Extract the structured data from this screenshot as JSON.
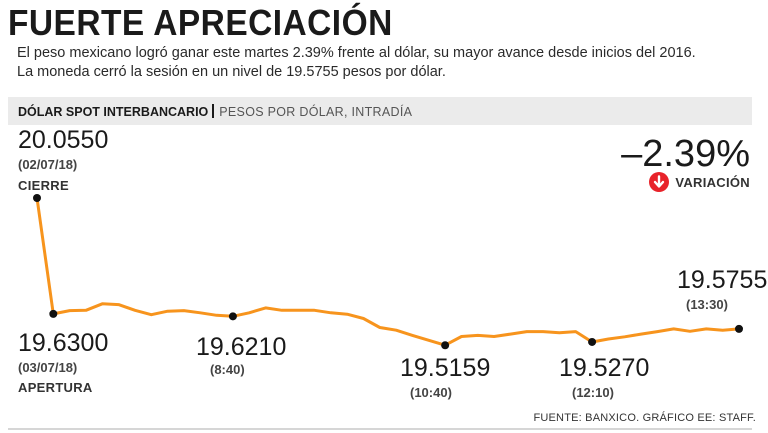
{
  "header": {
    "title": "FUERTE APRECIACIÓN",
    "subtitle_line1": "El peso mexicano logró ganar este martes 2.39% frente al dólar, su mayor avance desde inicios del 2016.",
    "subtitle_line2": "La moneda cerró la sesión en un nivel de 19.5755 pesos por dólar."
  },
  "band": {
    "bold": "DÓLAR SPOT INTERBANCARIO",
    "light": "PESOS POR DÓLAR, INTRADÍA"
  },
  "change": {
    "value": "–2.39%",
    "label": "VARIACIÓN",
    "color": "#e8232a"
  },
  "annotations": {
    "close": {
      "value": "20.0550",
      "date": "(02/07/18)",
      "tag": "CIERRE"
    },
    "open": {
      "value": "19.6300",
      "date": "(03/07/18)",
      "tag": "APERTURA"
    },
    "p840": {
      "value": "19.6210",
      "date": "(8:40)"
    },
    "p1040": {
      "value": "19.5159",
      "date": "(10:40)"
    },
    "p1210": {
      "value": "19.5270",
      "date": "(12:10)"
    },
    "p1330": {
      "value": "19.5755",
      "date": "(13:30)"
    }
  },
  "source": "FUENTE: BANXICO. GRÁFICO EE: STAFF.",
  "chart_data": {
    "type": "line",
    "title": "DÓLAR SPOT INTERBANCARIO",
    "ylabel": "PESOS POR DÓLAR, INTRADÍA",
    "xlabel": "",
    "line_color": "#f7941d",
    "ylim": [
      19.49,
      20.07
    ],
    "labeled_points": [
      {
        "label": "02/07/18 cierre",
        "value": 20.055
      },
      {
        "label": "03/07/18 apertura",
        "value": 19.63
      },
      {
        "label": "8:40",
        "value": 19.621
      },
      {
        "label": "10:40",
        "value": 19.5159
      },
      {
        "label": "12:10",
        "value": 19.527
      },
      {
        "label": "13:30",
        "value": 19.5755
      }
    ],
    "values": [
      20.055,
      19.63,
      19.642,
      19.643,
      19.667,
      19.664,
      19.643,
      19.627,
      19.64,
      19.642,
      19.634,
      19.625,
      19.621,
      19.634,
      19.652,
      19.643,
      19.643,
      19.643,
      19.634,
      19.629,
      19.613,
      19.58,
      19.57,
      19.551,
      19.533,
      19.515,
      19.547,
      19.551,
      19.547,
      19.556,
      19.565,
      19.565,
      19.561,
      19.565,
      19.527,
      19.538,
      19.546,
      19.556,
      19.565,
      19.575,
      19.566,
      19.575,
      19.57,
      19.575
    ],
    "markers": [
      0,
      1,
      12,
      25,
      34,
      43
    ]
  }
}
